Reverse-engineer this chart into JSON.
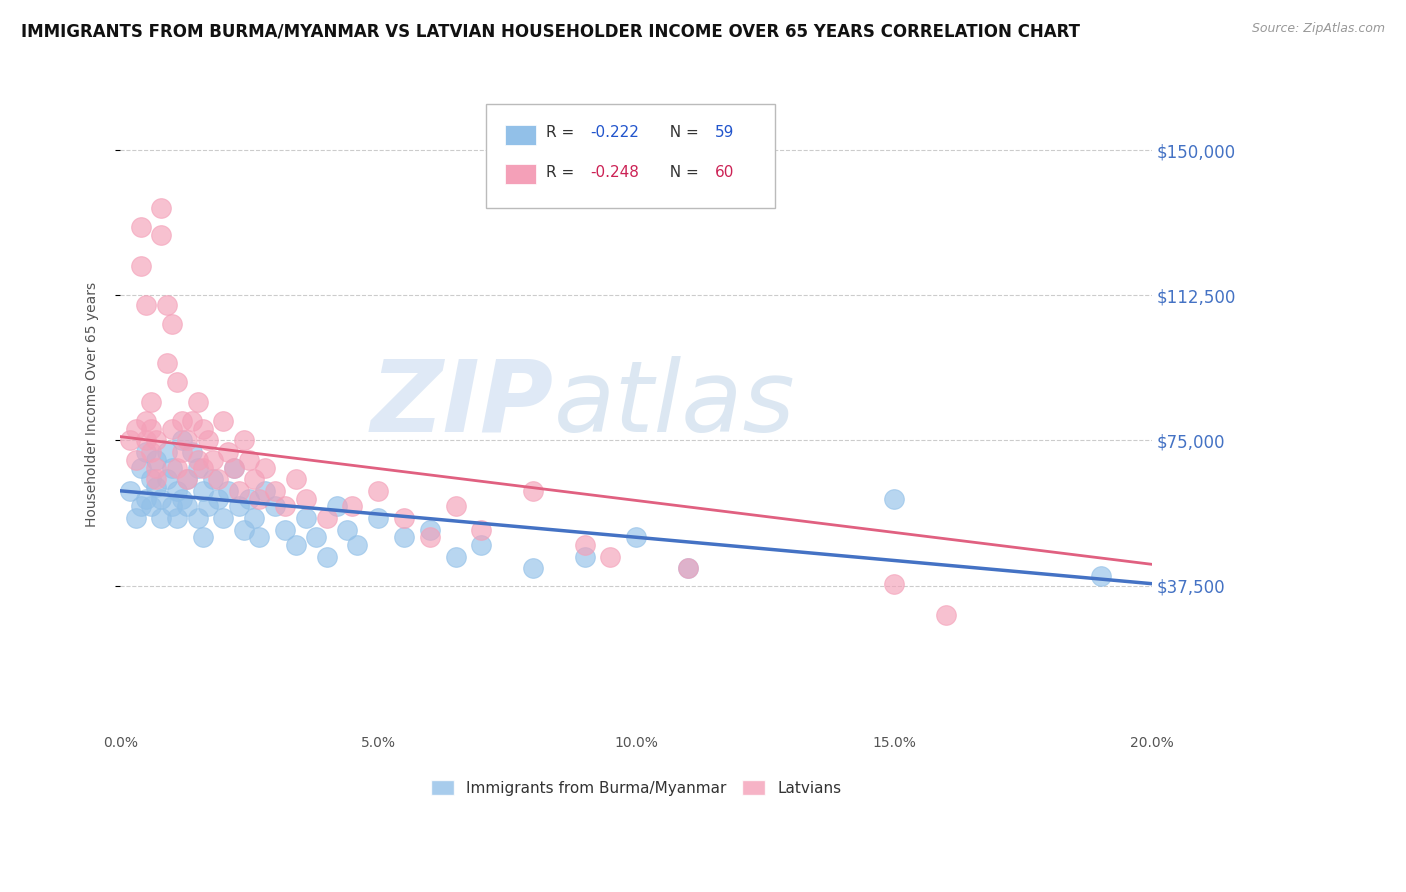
{
  "title": "IMMIGRANTS FROM BURMA/MYANMAR VS LATVIAN HOUSEHOLDER INCOME OVER 65 YEARS CORRELATION CHART",
  "source": "Source: ZipAtlas.com",
  "ylabel": "Householder Income Over 65 years",
  "xlim": [
    0.0,
    0.2
  ],
  "ylim": [
    0,
    168750
  ],
  "yticks": [
    37500,
    75000,
    112500,
    150000
  ],
  "ytick_labels": [
    "$37,500",
    "$75,000",
    "$112,500",
    "$150,000"
  ],
  "xticks": [
    0.0,
    0.05,
    0.1,
    0.15,
    0.2
  ],
  "xtick_labels": [
    "0.0%",
    "5.0%",
    "10.0%",
    "15.0%",
    "20.0%"
  ],
  "series1_label": "Immigrants from Burma/Myanmar",
  "series1_color": "#92C0E8",
  "series1_line_color": "#4472C4",
  "series1_R": -0.222,
  "series1_N": 59,
  "series2_label": "Latvians",
  "series2_color": "#F4A0B8",
  "series2_line_color": "#E06080",
  "series2_R": -0.248,
  "series2_N": 60,
  "legend_R1_color": "#2255CC",
  "legend_R2_color": "#CC2255",
  "watermark_zip": "ZIP",
  "watermark_atlas": "atlas",
  "background_color": "#ffffff",
  "grid_color": "#cccccc",
  "title_fontsize": 12,
  "source_fontsize": 9,
  "axis_label_fontsize": 10,
  "tick_fontsize": 10,
  "series1_x": [
    0.002,
    0.003,
    0.004,
    0.004,
    0.005,
    0.005,
    0.006,
    0.006,
    0.007,
    0.007,
    0.008,
    0.008,
    0.009,
    0.009,
    0.01,
    0.01,
    0.011,
    0.011,
    0.012,
    0.012,
    0.013,
    0.013,
    0.014,
    0.015,
    0.015,
    0.016,
    0.016,
    0.017,
    0.018,
    0.019,
    0.02,
    0.021,
    0.022,
    0.023,
    0.024,
    0.025,
    0.026,
    0.027,
    0.028,
    0.03,
    0.032,
    0.034,
    0.036,
    0.038,
    0.04,
    0.042,
    0.044,
    0.046,
    0.05,
    0.055,
    0.06,
    0.065,
    0.07,
    0.08,
    0.09,
    0.1,
    0.11,
    0.15,
    0.19
  ],
  "series1_y": [
    62000,
    55000,
    68000,
    58000,
    72000,
    60000,
    65000,
    58000,
    70000,
    63000,
    60000,
    55000,
    72000,
    65000,
    68000,
    58000,
    62000,
    55000,
    75000,
    60000,
    65000,
    58000,
    72000,
    68000,
    55000,
    62000,
    50000,
    58000,
    65000,
    60000,
    55000,
    62000,
    68000,
    58000,
    52000,
    60000,
    55000,
    50000,
    62000,
    58000,
    52000,
    48000,
    55000,
    50000,
    45000,
    58000,
    52000,
    48000,
    55000,
    50000,
    52000,
    45000,
    48000,
    42000,
    45000,
    50000,
    42000,
    60000,
    40000
  ],
  "series2_x": [
    0.002,
    0.003,
    0.003,
    0.004,
    0.004,
    0.005,
    0.005,
    0.005,
    0.006,
    0.006,
    0.006,
    0.007,
    0.007,
    0.007,
    0.008,
    0.008,
    0.009,
    0.009,
    0.01,
    0.01,
    0.011,
    0.011,
    0.012,
    0.012,
    0.013,
    0.013,
    0.014,
    0.015,
    0.015,
    0.016,
    0.016,
    0.017,
    0.018,
    0.019,
    0.02,
    0.021,
    0.022,
    0.023,
    0.024,
    0.025,
    0.026,
    0.027,
    0.028,
    0.03,
    0.032,
    0.034,
    0.036,
    0.04,
    0.045,
    0.05,
    0.055,
    0.06,
    0.065,
    0.07,
    0.08,
    0.09,
    0.095,
    0.11,
    0.15,
    0.16
  ],
  "series2_y": [
    75000,
    70000,
    78000,
    130000,
    120000,
    80000,
    75000,
    110000,
    72000,
    78000,
    85000,
    68000,
    75000,
    65000,
    128000,
    135000,
    110000,
    95000,
    105000,
    78000,
    90000,
    68000,
    80000,
    72000,
    75000,
    65000,
    80000,
    85000,
    70000,
    78000,
    68000,
    75000,
    70000,
    65000,
    80000,
    72000,
    68000,
    62000,
    75000,
    70000,
    65000,
    60000,
    68000,
    62000,
    58000,
    65000,
    60000,
    55000,
    58000,
    62000,
    55000,
    50000,
    58000,
    52000,
    62000,
    48000,
    45000,
    42000,
    38000,
    30000
  ],
  "line1_x0": 0.0,
  "line1_y0": 62000,
  "line1_x1": 0.2,
  "line1_y1": 38000,
  "line2_x0": 0.0,
  "line2_y0": 76000,
  "line2_x1": 0.2,
  "line2_y1": 43000
}
